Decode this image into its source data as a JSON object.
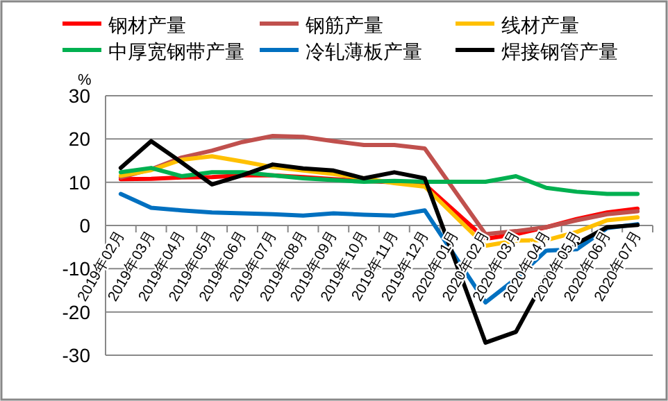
{
  "chart_data": {
    "type": "line",
    "ylabel": "%",
    "categories": [
      "2019年02月",
      "2019年03月",
      "2019年04月",
      "2019年05月",
      "2019年06月",
      "2019年07月",
      "2019年08月",
      "2019年09月",
      "2019年10月",
      "2019年11月",
      "2019年12月",
      "2020年01月",
      "2020年02月",
      "2020年03月",
      "2020年04月",
      "2020年05月",
      "2020年06月",
      "2020年07月"
    ],
    "series": [
      {
        "name": "钢材产量",
        "color": "#ff0000",
        "values": [
          10.7,
          10.8,
          11.1,
          11.2,
          11.6,
          11.6,
          11.2,
          10.7,
          10.3,
          10,
          9.5,
          null,
          -3.1,
          -2,
          -0.4,
          1.5,
          3,
          3.9
        ]
      },
      {
        "name": "钢筋产量",
        "color": "#c0504d",
        "values": [
          11.1,
          13,
          15.7,
          17.3,
          19.3,
          20.7,
          20.5,
          19.5,
          18.6,
          18.6,
          17.8,
          null,
          -2,
          -1.3,
          -0.4,
          1.2,
          2.6,
          3.3
        ]
      },
      {
        "name": "线材产量",
        "color": "#ffc000",
        "values": [
          11.5,
          12.8,
          15.2,
          16,
          14.8,
          13.5,
          12.7,
          11.9,
          10.9,
          9.8,
          9,
          null,
          -4.7,
          -3.5,
          -3.4,
          -1.5,
          1.2,
          1.9
        ]
      },
      {
        "name": "中厚宽钢带产量",
        "color": "#00b050",
        "values": [
          12.3,
          13.3,
          11.4,
          12.3,
          12.3,
          11.6,
          10.9,
          10.5,
          10.1,
          10.3,
          10.1,
          null,
          10.1,
          11.4,
          8.7,
          7.8,
          7.3,
          7.3
        ]
      },
      {
        "name": "冷轧薄板产量",
        "color": "#0070c0",
        "values": [
          7.3,
          4.1,
          3.5,
          3,
          2.8,
          2.6,
          2.3,
          2.8,
          2.5,
          2.3,
          3.5,
          null,
          -17.8,
          -12.3,
          -5.8,
          -5.5,
          -0.6,
          0.3
        ]
      },
      {
        "name": "焊接钢管产量",
        "color": "#000000",
        "values": [
          13.3,
          19.5,
          14.6,
          9.5,
          11.6,
          14.1,
          13.2,
          12.7,
          10.9,
          12.3,
          10.9,
          null,
          -27.1,
          -24.6,
          -11.7,
          -4.2,
          -0.4,
          0.1
        ]
      }
    ],
    "ylim": [
      -30,
      30
    ],
    "yticks": [
      -30,
      -20,
      -10,
      0,
      10,
      20,
      30
    ],
    "grid": "y",
    "legend": "top",
    "marker": "none",
    "line_style": "solid"
  }
}
